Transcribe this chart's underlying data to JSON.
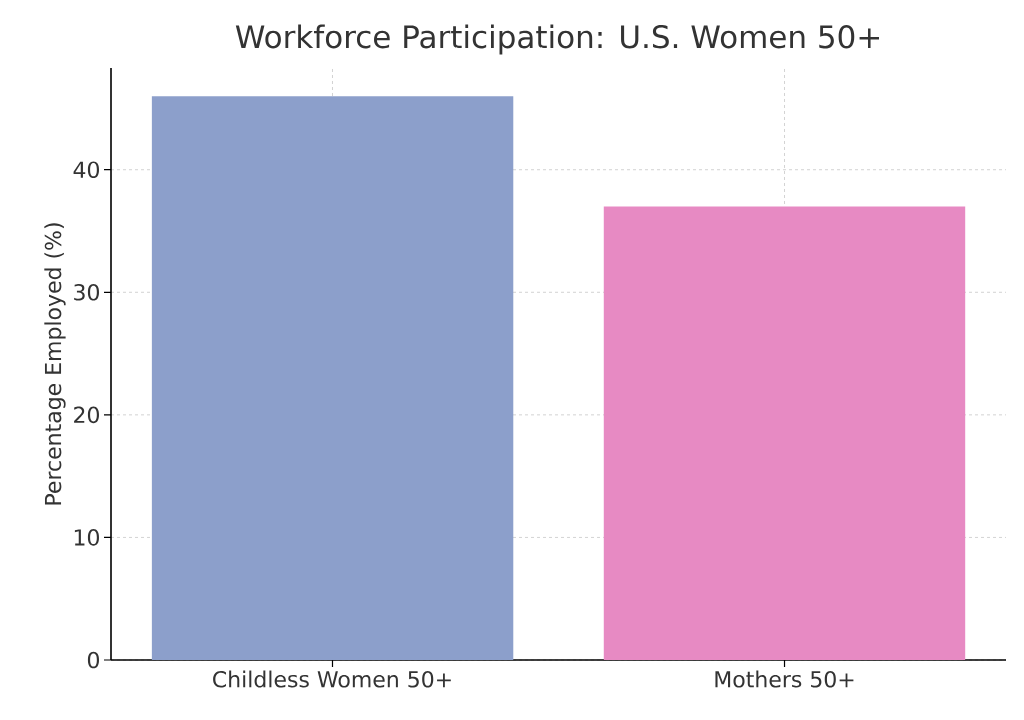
{
  "chart_data": {
    "type": "bar",
    "title": "Workforce Participation: U.S. Women 50+",
    "ylabel": "Percentage Employed (%)",
    "categories": [
      "Childless Women 50+",
      "Mothers 50+"
    ],
    "values": [
      46,
      37
    ],
    "colors": [
      "#8c9fcb",
      "#e78ac3"
    ],
    "ylim": [
      0,
      48.3
    ],
    "yticks": [
      0,
      10,
      20,
      30,
      40
    ],
    "grid": true
  }
}
